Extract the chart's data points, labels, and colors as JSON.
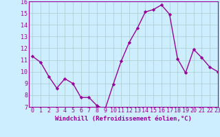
{
  "x": [
    0,
    1,
    2,
    3,
    4,
    5,
    6,
    7,
    8,
    9,
    10,
    11,
    12,
    13,
    14,
    15,
    16,
    17,
    18,
    19,
    20,
    21,
    22,
    23
  ],
  "y": [
    11.3,
    10.8,
    9.6,
    8.6,
    9.4,
    9.0,
    7.8,
    7.8,
    7.1,
    6.8,
    8.9,
    10.9,
    12.5,
    13.7,
    15.1,
    15.3,
    15.7,
    14.9,
    11.1,
    9.9,
    11.9,
    11.2,
    10.4,
    10.0
  ],
  "line_color": "#990099",
  "marker": "D",
  "marker_size": 2.2,
  "background_color": "#cceeff",
  "grid_color": "#aacccc",
  "xlabel": "Windchill (Refroidissement éolien,°C)",
  "ylim": [
    7,
    16
  ],
  "xlim": [
    -0.5,
    23
  ],
  "yticks": [
    7,
    8,
    9,
    10,
    11,
    12,
    13,
    14,
    15,
    16
  ],
  "xticks": [
    0,
    1,
    2,
    3,
    4,
    5,
    6,
    7,
    8,
    9,
    10,
    11,
    12,
    13,
    14,
    15,
    16,
    17,
    18,
    19,
    20,
    21,
    22,
    23
  ],
  "xlabel_fontsize": 6.5,
  "tick_fontsize": 6.0,
  "line_width": 1.0
}
